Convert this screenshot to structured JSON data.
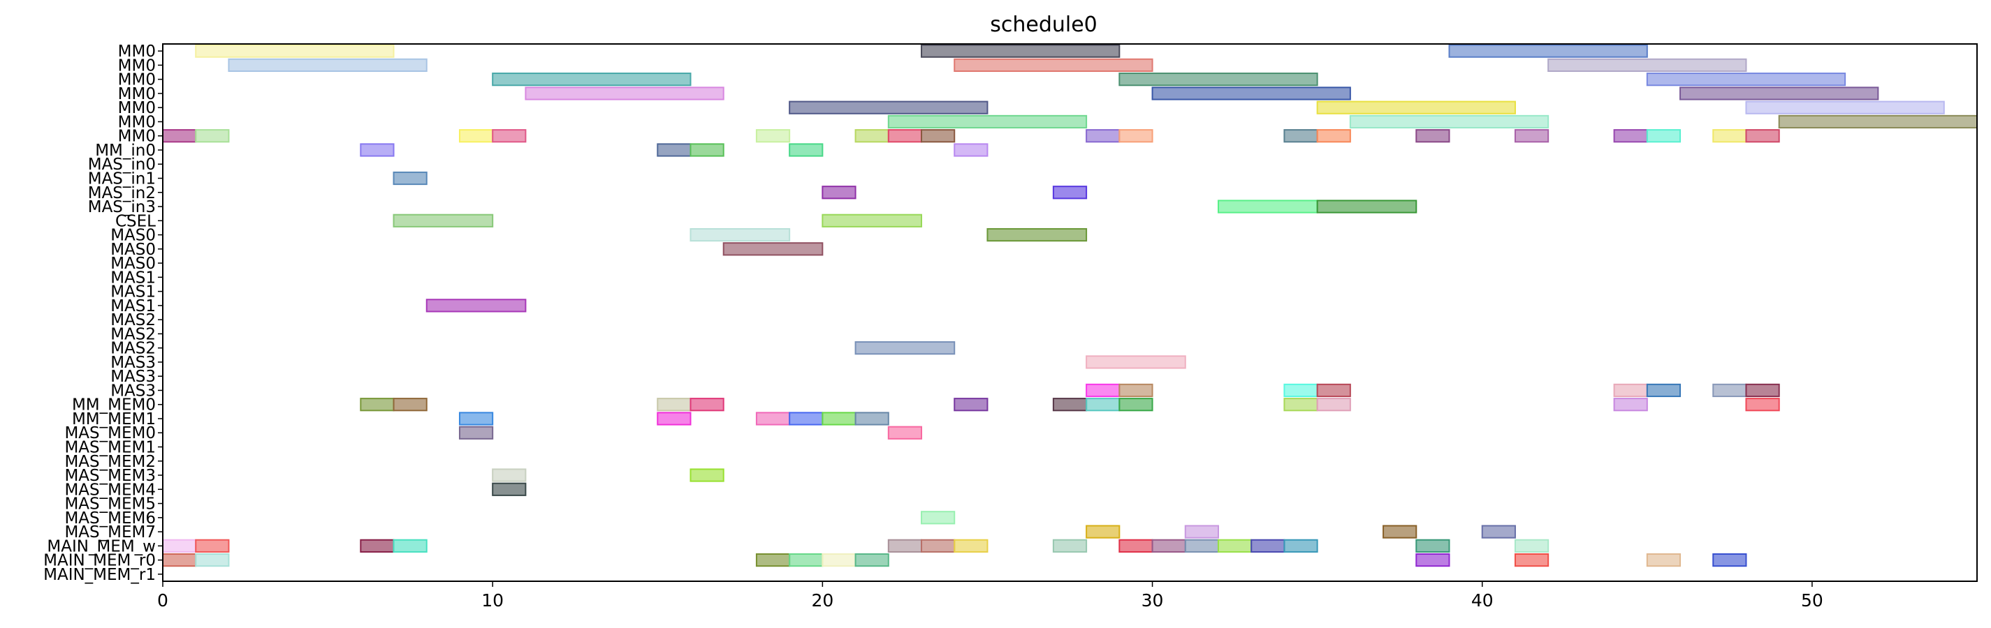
{
  "chart_data": {
    "type": "gantt",
    "title": "schedule0",
    "xlabel": "",
    "ylabel": "",
    "xlim": [
      0,
      55
    ],
    "xticks": [
      0,
      10,
      20,
      30,
      40,
      50
    ],
    "grid": false,
    "rows": [
      "MM0",
      "MM0",
      "MM0",
      "MM0",
      "MM0",
      "MM0",
      "MM0",
      "MM_in0",
      "MAS_in0",
      "MAS_in1",
      "MAS_in2",
      "MAS_in3",
      "CSEL",
      "MAS0",
      "MAS0",
      "MAS0",
      "MAS1",
      "MAS1",
      "MAS1",
      "MAS2",
      "MAS2",
      "MAS2",
      "MAS3",
      "MAS3",
      "MAS3",
      "MM_MEM0",
      "MM_MEM1",
      "MAS_MEM0",
      "MAS_MEM1",
      "MAS_MEM2",
      "MAS_MEM3",
      "MAS_MEM4",
      "MAS_MEM5",
      "MAS_MEM6",
      "MAS_MEM7",
      "MAIN_MEM_w",
      "MAIN_MEM_r0",
      "MAIN_MEM_r1"
    ],
    "bars": [
      {
        "row": 0,
        "start": 1,
        "end": 7,
        "color": "#f5f0a0"
      },
      {
        "row": 0,
        "start": 23,
        "end": 29,
        "color": "#4a4a5a"
      },
      {
        "row": 0,
        "start": 39,
        "end": 45,
        "color": "#5a7ec8"
      },
      {
        "row": 1,
        "start": 2,
        "end": 8,
        "color": "#a8c4e4"
      },
      {
        "row": 1,
        "start": 24,
        "end": 30,
        "color": "#e07870"
      },
      {
        "row": 1,
        "start": 42,
        "end": 48,
        "color": "#b0a8c8"
      },
      {
        "row": 2,
        "start": 10,
        "end": 16,
        "color": "#48a8a8"
      },
      {
        "row": 2,
        "start": 29,
        "end": 35,
        "color": "#4a9070"
      },
      {
        "row": 2,
        "start": 45,
        "end": 51,
        "color": "#7888e0"
      },
      {
        "row": 3,
        "start": 11,
        "end": 17,
        "color": "#d888e0"
      },
      {
        "row": 3,
        "start": 30,
        "end": 36,
        "color": "#3a58a8"
      },
      {
        "row": 3,
        "start": 46,
        "end": 52,
        "color": "#7a5a98"
      },
      {
        "row": 4,
        "start": 19,
        "end": 25,
        "color": "#505888"
      },
      {
        "row": 4,
        "start": 35,
        "end": 41,
        "color": "#e8e040"
      },
      {
        "row": 4,
        "start": 48,
        "end": 54,
        "color": "#b8b8f0"
      },
      {
        "row": 5,
        "start": 22,
        "end": 28,
        "color": "#70d890"
      },
      {
        "row": 5,
        "start": 36,
        "end": 42,
        "color": "#98e8c8"
      },
      {
        "row": 5,
        "start": 49,
        "end": 55,
        "color": "#8a8a58"
      },
      {
        "row": 6,
        "start": 0,
        "end": 1,
        "color": "#a83888"
      },
      {
        "row": 6,
        "start": 1,
        "end": 2,
        "color": "#a8e098"
      },
      {
        "row": 6,
        "start": 9,
        "end": 10,
        "color": "#f8f060"
      },
      {
        "row": 6,
        "start": 10,
        "end": 11,
        "color": "#e05888"
      },
      {
        "row": 6,
        "start": 18,
        "end": 19,
        "color": "#c8f0a0"
      },
      {
        "row": 6,
        "start": 21,
        "end": 22,
        "color": "#b8d860"
      },
      {
        "row": 6,
        "start": 22,
        "end": 23,
        "color": "#e04868"
      },
      {
        "row": 6,
        "start": 23,
        "end": 24,
        "color": "#8a5840"
      },
      {
        "row": 6,
        "start": 28,
        "end": 29,
        "color": "#8868d0"
      },
      {
        "row": 6,
        "start": 29,
        "end": 30,
        "color": "#f8a078"
      },
      {
        "row": 6,
        "start": 34,
        "end": 35,
        "color": "#588090"
      },
      {
        "row": 6,
        "start": 35,
        "end": 36,
        "color": "#f88858"
      },
      {
        "row": 6,
        "start": 38,
        "end": 39,
        "color": "#8a4888"
      },
      {
        "row": 6,
        "start": 41,
        "end": 42,
        "color": "#a860a8"
      },
      {
        "row": 6,
        "start": 44,
        "end": 45,
        "color": "#9848b0"
      },
      {
        "row": 6,
        "start": 45,
        "end": 46,
        "color": "#58f0d0"
      },
      {
        "row": 6,
        "start": 47,
        "end": 48,
        "color": "#f0e868"
      },
      {
        "row": 6,
        "start": 48,
        "end": 49,
        "color": "#d04868"
      },
      {
        "row": 7,
        "start": 6,
        "end": 7,
        "color": "#8878f0"
      },
      {
        "row": 7,
        "start": 15,
        "end": 16,
        "color": "#506898"
      },
      {
        "row": 7,
        "start": 16,
        "end": 17,
        "color": "#58c058"
      },
      {
        "row": 7,
        "start": 19,
        "end": 20,
        "color": "#48d888"
      },
      {
        "row": 7,
        "start": 24,
        "end": 25,
        "color": "#b888f0"
      },
      {
        "row": 9,
        "start": 7,
        "end": 8,
        "color": "#5888b8"
      },
      {
        "row": 10,
        "start": 20,
        "end": 21,
        "color": "#9030a8"
      },
      {
        "row": 10,
        "start": 27,
        "end": 28,
        "color": "#5838e0"
      },
      {
        "row": 11,
        "start": 32,
        "end": 35,
        "color": "#58f088"
      },
      {
        "row": 11,
        "start": 35,
        "end": 38,
        "color": "#3a9838"
      },
      {
        "row": 12,
        "start": 7,
        "end": 10,
        "color": "#88c878"
      },
      {
        "row": 12,
        "start": 20,
        "end": 23,
        "color": "#98d858"
      },
      {
        "row": 13,
        "start": 16,
        "end": 19,
        "color": "#b8e0d8"
      },
      {
        "row": 13,
        "start": 25,
        "end": 28,
        "color": "#6a9838"
      },
      {
        "row": 14,
        "start": 17,
        "end": 20,
        "color": "#905060"
      },
      {
        "row": 18,
        "start": 8,
        "end": 11,
        "color": "#a838b8"
      },
      {
        "row": 21,
        "start": 21,
        "end": 24,
        "color": "#7890b8"
      },
      {
        "row": 22,
        "start": 28,
        "end": 31,
        "color": "#f0b0c0"
      },
      {
        "row": 24,
        "start": 28,
        "end": 29,
        "color": "#f838e8"
      },
      {
        "row": 24,
        "start": 29,
        "end": 30,
        "color": "#b88860"
      },
      {
        "row": 24,
        "start": 34,
        "end": 35,
        "color": "#58f8e0"
      },
      {
        "row": 24,
        "start": 35,
        "end": 36,
        "color": "#b84858"
      },
      {
        "row": 24,
        "start": 44,
        "end": 45,
        "color": "#e8a8b8"
      },
      {
        "row": 24,
        "start": 45,
        "end": 46,
        "color": "#3878b8"
      },
      {
        "row": 24,
        "start": 47,
        "end": 48,
        "color": "#8898b8"
      },
      {
        "row": 24,
        "start": 48,
        "end": 49,
        "color": "#883050"
      },
      {
        "row": 25,
        "start": 6,
        "end": 7,
        "color": "#789838"
      },
      {
        "row": 25,
        "start": 7,
        "end": 8,
        "color": "#906838"
      },
      {
        "row": 25,
        "start": 15,
        "end": 16,
        "color": "#c8c8a8"
      },
      {
        "row": 25,
        "start": 16,
        "end": 17,
        "color": "#e03878"
      },
      {
        "row": 25,
        "start": 24,
        "end": 25,
        "color": "#7838a0"
      },
      {
        "row": 25,
        "start": 27,
        "end": 28,
        "color": "#583848"
      },
      {
        "row": 25,
        "start": 28,
        "end": 29,
        "color": "#58c8c0"
      },
      {
        "row": 25,
        "start": 29,
        "end": 30,
        "color": "#38a848"
      },
      {
        "row": 25,
        "start": 34,
        "end": 35,
        "color": "#a8d858"
      },
      {
        "row": 25,
        "start": 35,
        "end": 36,
        "color": "#e0a0b8"
      },
      {
        "row": 25,
        "start": 44,
        "end": 45,
        "color": "#c888e0"
      },
      {
        "row": 25,
        "start": 48,
        "end": 49,
        "color": "#f04858"
      },
      {
        "row": 26,
        "start": 9,
        "end": 10,
        "color": "#3888e0"
      },
      {
        "row": 26,
        "start": 15,
        "end": 16,
        "color": "#f030d8"
      },
      {
        "row": 26,
        "start": 18,
        "end": 19,
        "color": "#f068b8"
      },
      {
        "row": 26,
        "start": 19,
        "end": 20,
        "color": "#4868f0"
      },
      {
        "row": 26,
        "start": 20,
        "end": 21,
        "color": "#68d848"
      },
      {
        "row": 26,
        "start": 21,
        "end": 22,
        "color": "#6888a8"
      },
      {
        "row": 27,
        "start": 9,
        "end": 10,
        "color": "#786890"
      },
      {
        "row": 27,
        "start": 22,
        "end": 23,
        "color": "#f868a0"
      },
      {
        "row": 30,
        "start": 10,
        "end": 11,
        "color": "#c8d0c0"
      },
      {
        "row": 30,
        "start": 16,
        "end": 17,
        "color": "#98e030"
      },
      {
        "row": 31,
        "start": 10,
        "end": 11,
        "color": "#384848"
      },
      {
        "row": 33,
        "start": 23,
        "end": 24,
        "color": "#98f0b0"
      },
      {
        "row": 34,
        "start": 28,
        "end": 29,
        "color": "#d8b018"
      },
      {
        "row": 34,
        "start": 31,
        "end": 32,
        "color": "#c898e0"
      },
      {
        "row": 34,
        "start": 37,
        "end": 38,
        "color": "#886028"
      },
      {
        "row": 34,
        "start": 40,
        "end": 41,
        "color": "#6870a8"
      },
      {
        "row": 35,
        "start": 0,
        "end": 1,
        "color": "#f0b8f0"
      },
      {
        "row": 35,
        "start": 1,
        "end": 2,
        "color": "#f05858"
      },
      {
        "row": 35,
        "start": 6,
        "end": 7,
        "color": "#882048"
      },
      {
        "row": 35,
        "start": 7,
        "end": 8,
        "color": "#48e0c0"
      },
      {
        "row": 35,
        "start": 22,
        "end": 23,
        "color": "#a89098"
      },
      {
        "row": 35,
        "start": 23,
        "end": 24,
        "color": "#b87068"
      },
      {
        "row": 35,
        "start": 24,
        "end": 25,
        "color": "#e8d048"
      },
      {
        "row": 35,
        "start": 27,
        "end": 28,
        "color": "#98c8b0"
      },
      {
        "row": 35,
        "start": 29,
        "end": 30,
        "color": "#e03048"
      },
      {
        "row": 35,
        "start": 30,
        "end": 31,
        "color": "#985888"
      },
      {
        "row": 35,
        "start": 31,
        "end": 32,
        "color": "#7890b0"
      },
      {
        "row": 35,
        "start": 32,
        "end": 33,
        "color": "#98e048"
      },
      {
        "row": 35,
        "start": 33,
        "end": 34,
        "color": "#4848b0"
      },
      {
        "row": 35,
        "start": 34,
        "end": 35,
        "color": "#3898b8"
      },
      {
        "row": 35,
        "start": 38,
        "end": 39,
        "color": "#389878"
      },
      {
        "row": 35,
        "start": 41,
        "end": 42,
        "color": "#a8e8c8"
      },
      {
        "row": 36,
        "start": 0,
        "end": 1,
        "color": "#d06858"
      },
      {
        "row": 36,
        "start": 1,
        "end": 2,
        "color": "#a8e0d8"
      },
      {
        "row": 36,
        "start": 18,
        "end": 19,
        "color": "#789030"
      },
      {
        "row": 36,
        "start": 19,
        "end": 20,
        "color": "#68d888"
      },
      {
        "row": 36,
        "start": 20,
        "end": 21,
        "color": "#f0f0c0"
      },
      {
        "row": 36,
        "start": 21,
        "end": 22,
        "color": "#58b888"
      },
      {
        "row": 36,
        "start": 38,
        "end": 39,
        "color": "#9028d0"
      },
      {
        "row": 36,
        "start": 41,
        "end": 42,
        "color": "#f05048"
      },
      {
        "row": 36,
        "start": 45,
        "end": 46,
        "color": "#e0b890"
      },
      {
        "row": 36,
        "start": 47,
        "end": 48,
        "color": "#3850d0"
      }
    ]
  }
}
